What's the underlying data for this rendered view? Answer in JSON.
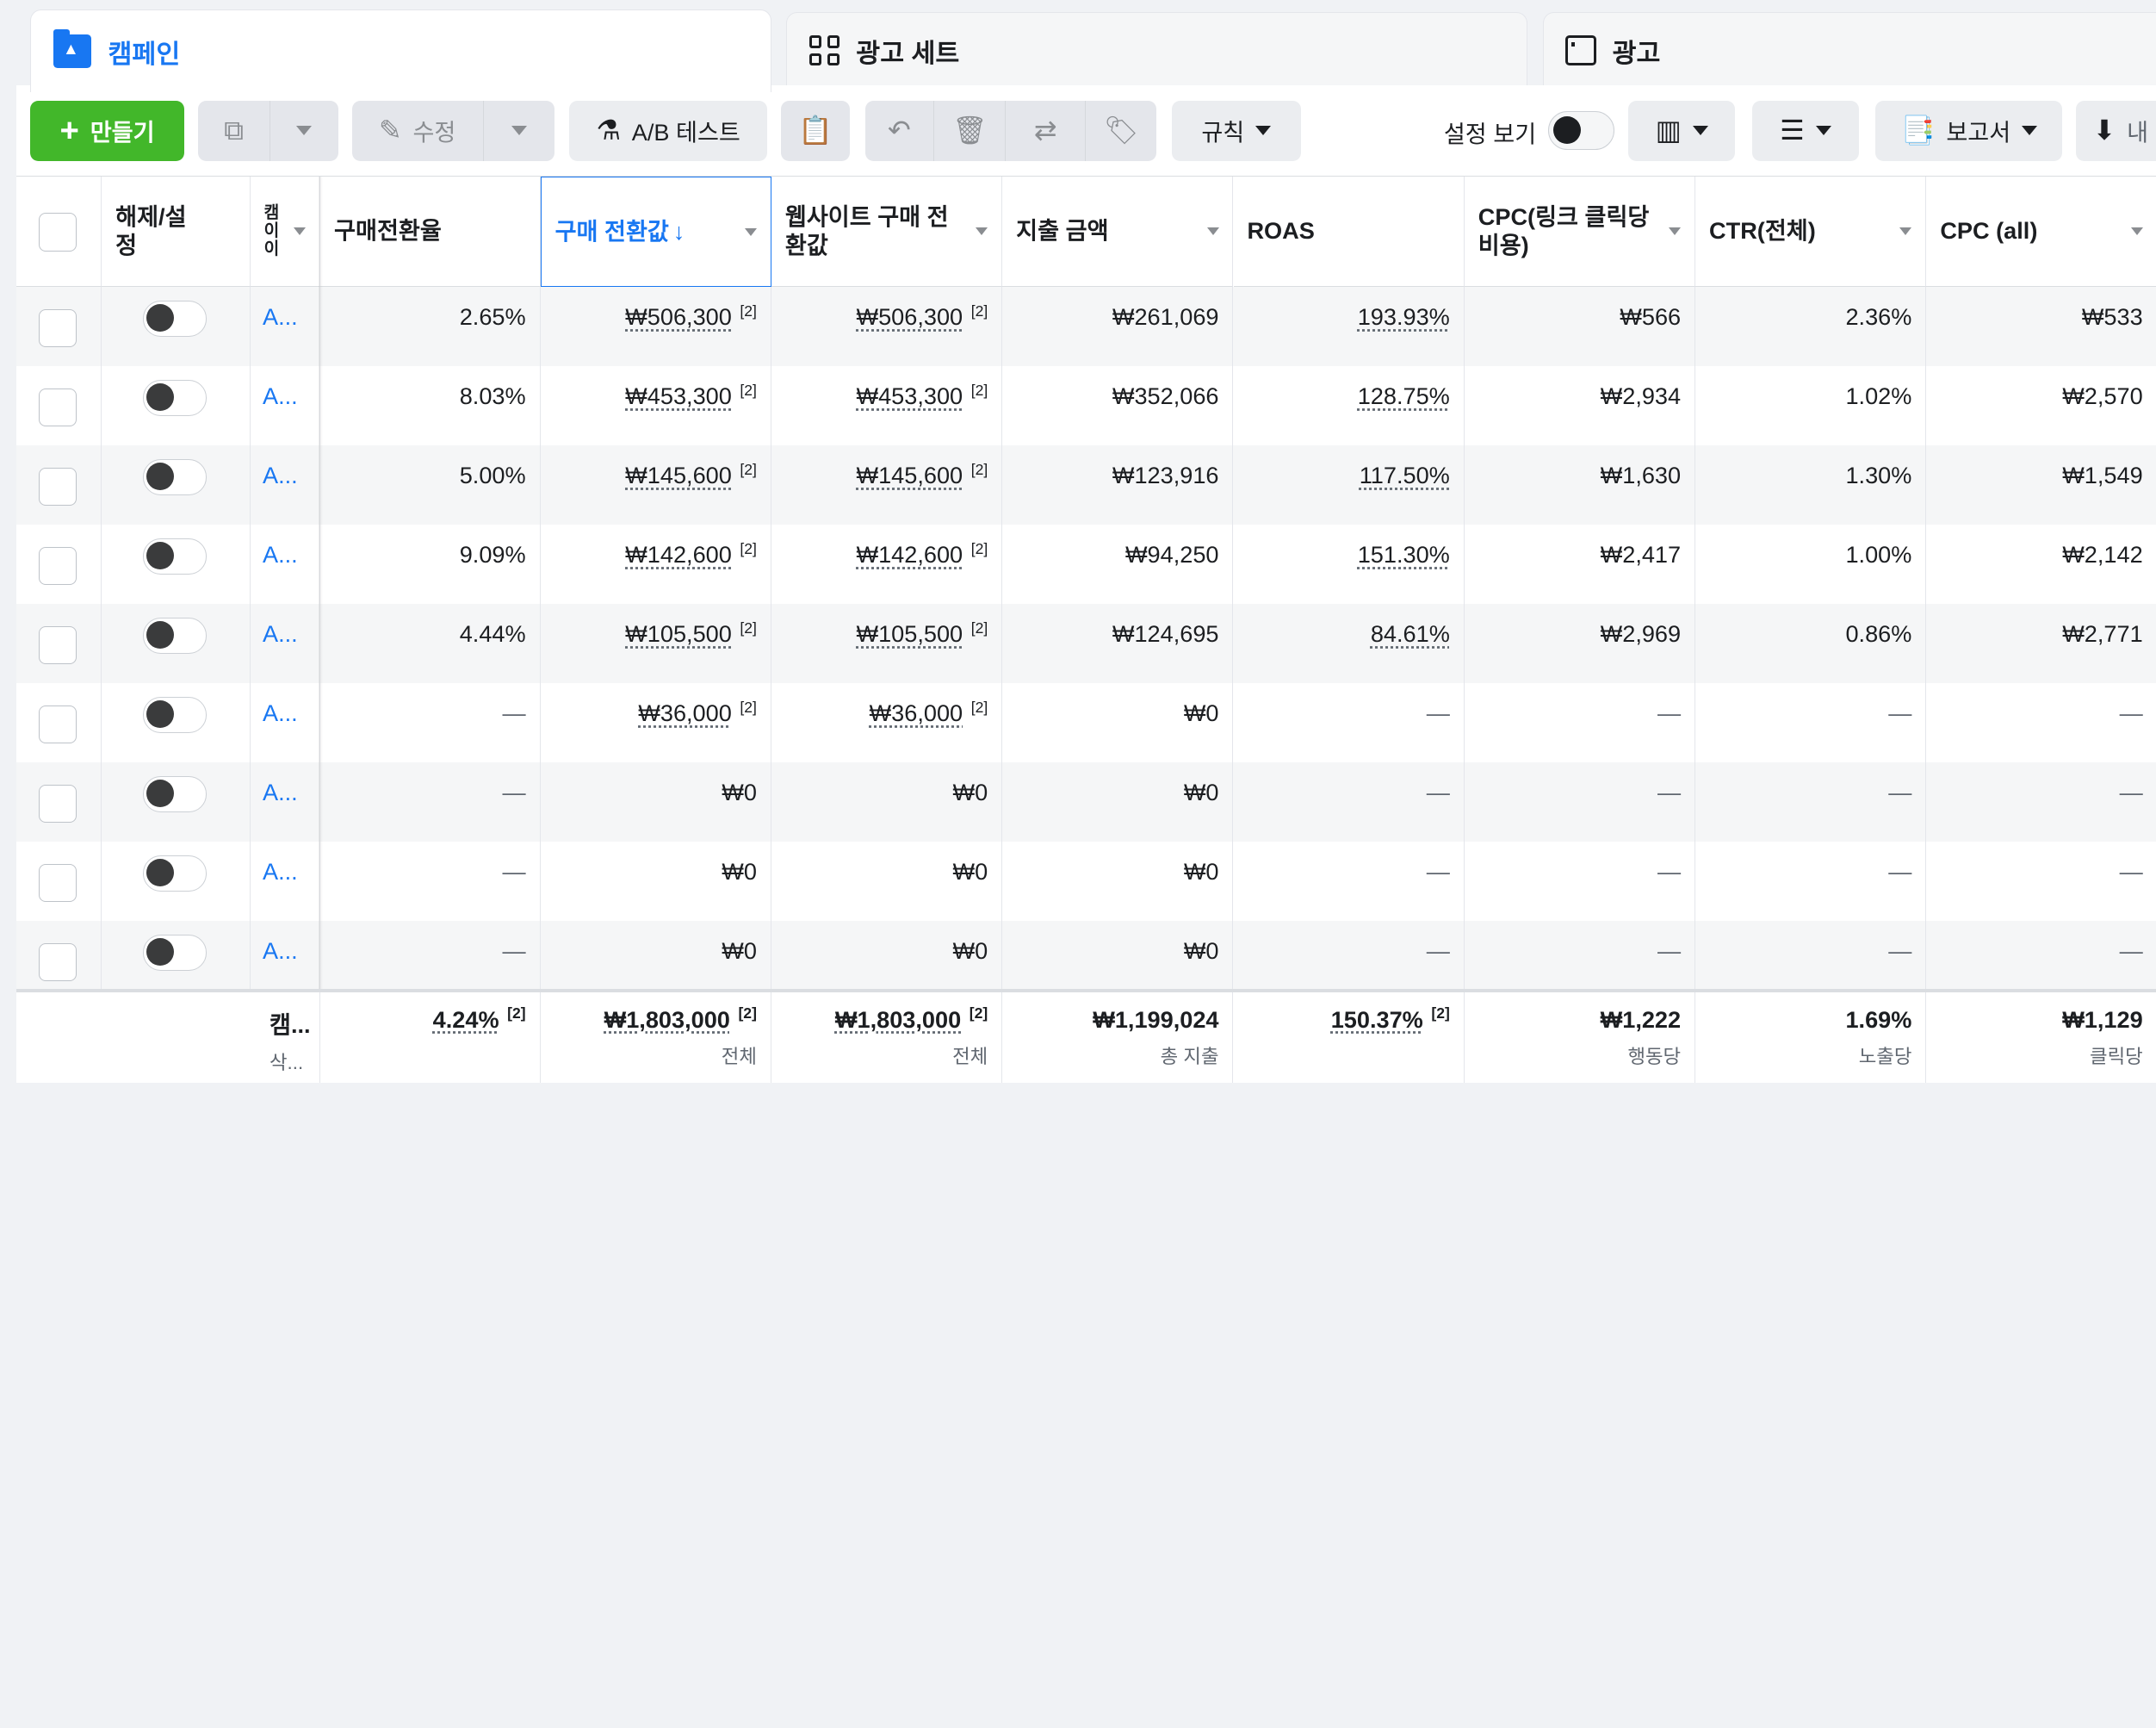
{
  "tabs": [
    {
      "label": "캠페인",
      "icon": "campaign-folder-icon",
      "active": true
    },
    {
      "label": "광고 세트",
      "icon": "adset-grid-icon",
      "active": false
    },
    {
      "label": "광고",
      "icon": "ad-window-icon",
      "active": false
    }
  ],
  "toolbar": {
    "create_label": "만들기",
    "edit_label": "수정",
    "ab_test_label": "A/B 테스트",
    "rules_label": "규칙",
    "view_setup_label": "설정 보기",
    "reports_label": "보고서",
    "export_label_partial": "내"
  },
  "columns": [
    {
      "key": "toggle",
      "label": "해제/설정"
    },
    {
      "key": "name",
      "label": "캠페인 이름"
    },
    {
      "key": "cvr",
      "label": "구매전환율"
    },
    {
      "key": "purchase_value",
      "label": "구매 전환값 ↓"
    },
    {
      "key": "web_purchase_value",
      "label": "웹사이트 구매 전환값"
    },
    {
      "key": "spend",
      "label": "지출 금액"
    },
    {
      "key": "roas",
      "label": "ROAS"
    },
    {
      "key": "cpc_link",
      "label": "CPC(링크 클릭당 비용)"
    },
    {
      "key": "ctr",
      "label": "CTR(전체)"
    },
    {
      "key": "cpc_all",
      "label": "CPC (all)"
    }
  ],
  "header_labels": {
    "toggle": "해제/설\n정",
    "name_fragment": "캠\n이\n이",
    "cvr": "구매전환율",
    "purchase_value": "구매 전환값",
    "sort_arrow": "↓",
    "web_purchase_value": "웹사이트 구매 전\n환값",
    "spend": "지출 금액",
    "roas": "ROAS",
    "cpc_link": "CPC(링크 클릭당\n비용)",
    "ctr": "CTR(전체)",
    "cpc_all": "CPC (all)"
  },
  "rows": [
    {
      "name": "A...",
      "cvr": "2.65%",
      "purchase_value": "₩506,300",
      "web_purchase_value": "₩506,300",
      "spend": "₩261,069",
      "roas": "193.93%",
      "cpc_link": "₩566",
      "ctr": "2.36%",
      "cpc_all": "₩533",
      "note": "[2]"
    },
    {
      "name": "A...",
      "cvr": "8.03%",
      "purchase_value": "₩453,300",
      "web_purchase_value": "₩453,300",
      "spend": "₩352,066",
      "roas": "128.75%",
      "cpc_link": "₩2,934",
      "ctr": "1.02%",
      "cpc_all": "₩2,570",
      "note": "[2]"
    },
    {
      "name": "A...",
      "cvr": "5.00%",
      "purchase_value": "₩145,600",
      "web_purchase_value": "₩145,600",
      "spend": "₩123,916",
      "roas": "117.50%",
      "cpc_link": "₩1,630",
      "ctr": "1.30%",
      "cpc_all": "₩1,549",
      "note": "[2]"
    },
    {
      "name": "A...",
      "cvr": "9.09%",
      "purchase_value": "₩142,600",
      "web_purchase_value": "₩142,600",
      "spend": "₩94,250",
      "roas": "151.30%",
      "cpc_link": "₩2,417",
      "ctr": "1.00%",
      "cpc_all": "₩2,142",
      "note": "[2]"
    },
    {
      "name": "A...",
      "cvr": "4.44%",
      "purchase_value": "₩105,500",
      "web_purchase_value": "₩105,500",
      "spend": "₩124,695",
      "roas": "84.61%",
      "cpc_link": "₩2,969",
      "ctr": "0.86%",
      "cpc_all": "₩2,771",
      "note": "[2]"
    },
    {
      "name": "A...",
      "cvr": "—",
      "purchase_value": "₩36,000",
      "web_purchase_value": "₩36,000",
      "spend": "₩0",
      "roas": "—",
      "cpc_link": "—",
      "ctr": "—",
      "cpc_all": "—",
      "note": "[2]"
    },
    {
      "name": "A...",
      "cvr": "—",
      "purchase_value": "₩0",
      "web_purchase_value": "₩0",
      "spend": "₩0",
      "roas": "—",
      "cpc_link": "—",
      "ctr": "—",
      "cpc_all": "—",
      "note": ""
    },
    {
      "name": "A...",
      "cvr": "—",
      "purchase_value": "₩0",
      "web_purchase_value": "₩0",
      "spend": "₩0",
      "roas": "—",
      "cpc_link": "—",
      "ctr": "—",
      "cpc_all": "—",
      "note": ""
    },
    {
      "name": "A...",
      "cvr": "—",
      "purchase_value": "₩0",
      "web_purchase_value": "₩0",
      "spend": "₩0",
      "roas": "—",
      "cpc_link": "—",
      "ctr": "—",
      "cpc_all": "—",
      "note": ""
    }
  ],
  "totals": {
    "name": "캠...",
    "name_sub": "삭...",
    "cvr": "4.24%",
    "purchase_value": "₩1,803,000",
    "purchase_value_sub": "전체",
    "web_purchase_value": "₩1,803,000",
    "web_purchase_value_sub": "전체",
    "spend": "₩1,199,024",
    "spend_sub": "총 지출",
    "roas": "150.37%",
    "cpc_link": "₩1,222",
    "cpc_link_sub": "행동당",
    "ctr": "1.69%",
    "ctr_sub": "노출당",
    "cpc_all": "₩1,129",
    "cpc_all_sub": "클릭당",
    "note": "[2]"
  },
  "colors": {
    "accent": "#1877f2",
    "create_green": "#42b72a"
  }
}
